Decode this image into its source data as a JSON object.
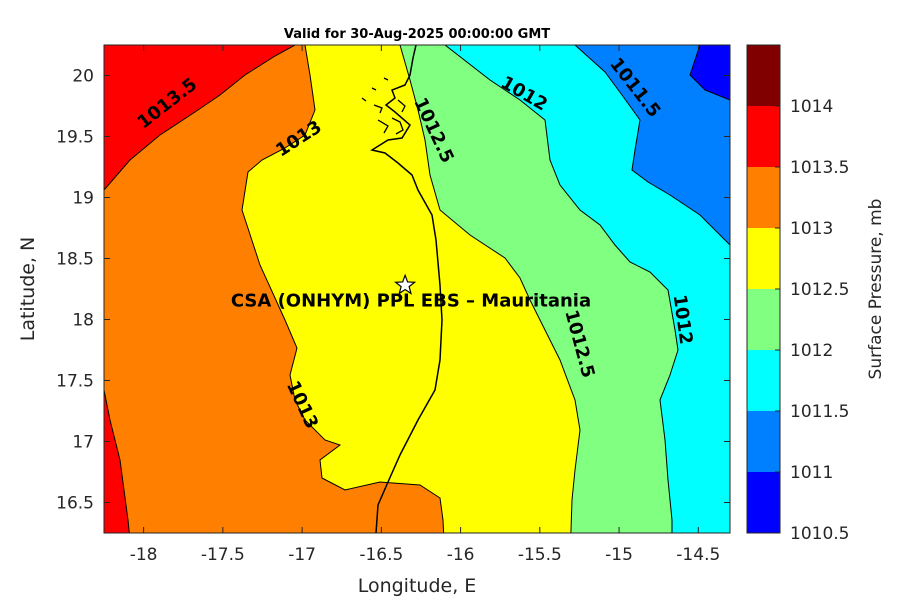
{
  "chart_data": {
    "type": "contour-map",
    "title": "Valid for 30-Aug-2025 00:00:00 GMT",
    "xlabel": "Longitude, E",
    "ylabel": "Latitude, N",
    "xlim": [
      -18.25,
      -14.3
    ],
    "ylim": [
      16.25,
      20.25
    ],
    "xticks": [
      -18,
      -17.5,
      -17,
      -16.5,
      -16,
      -15.5,
      -15,
      -14.5
    ],
    "yticks": [
      16.5,
      17,
      17.5,
      18,
      18.5,
      19,
      19.5,
      20
    ],
    "site": {
      "name": "CSA (ONHYM) PPL EBS  – Mauritania",
      "lon": -16.35,
      "lat": 18.28
    },
    "colorbar": {
      "label": "Surface Pressure, mb",
      "levels": [
        1010.5,
        1011,
        1011.5,
        1012,
        1012.5,
        1013,
        1013.5,
        1014
      ],
      "tick_labels": [
        "1010.5",
        "1011",
        "1011.5",
        "1012",
        "1012.5",
        "1013",
        "1013.5",
        "1014"
      ],
      "colors": [
        "#0000ff",
        "#0080ff",
        "#00ffff",
        "#80ff80",
        "#ffff00",
        "#ff8000",
        "#ff0000",
        "#800000"
      ]
    },
    "contour_labels": [
      {
        "text": "1013.5",
        "lon": -17.85,
        "lat": 19.77
      },
      {
        "text": "1013",
        "lon": -17.02,
        "lat": 19.48
      },
      {
        "text": "1013",
        "lon": -17.0,
        "lat": 17.3
      },
      {
        "text": "1012.5",
        "lon": -16.17,
        "lat": 19.55
      },
      {
        "text": "1012",
        "lon": -15.6,
        "lat": 19.85
      },
      {
        "text": "1011.5",
        "lon": -14.9,
        "lat": 19.9
      },
      {
        "text": "1012.5",
        "lon": -15.25,
        "lat": 17.8
      },
      {
        "text": "1012",
        "lon": -14.6,
        "lat": 18.0
      }
    ]
  }
}
